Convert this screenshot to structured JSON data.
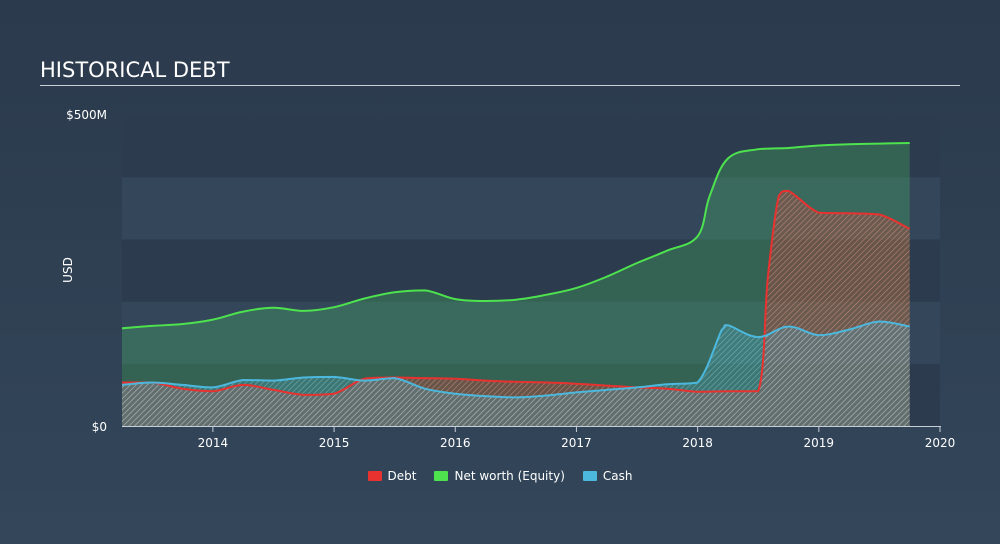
{
  "title": "HISTORICAL DEBT",
  "colors": {
    "debt": "#e8322f",
    "equity": "#4de24e",
    "cash": "#4cb8dd",
    "plot_band_dark": "#2c3b4d",
    "plot_band_light": "#34465a"
  },
  "chart_data": {
    "type": "area",
    "title": "HISTORICAL DEBT",
    "ylabel": "USD",
    "xlabel": "",
    "ylim": [
      0,
      500
    ],
    "xlim": [
      2013.25,
      2020.0
    ],
    "y_ticks": [
      {
        "value": 0,
        "label": "$0"
      },
      {
        "value": 500,
        "label": "$500M"
      }
    ],
    "x_ticks": [
      {
        "value": 2014,
        "label": "2014"
      },
      {
        "value": 2015,
        "label": "2015"
      },
      {
        "value": 2016,
        "label": "2016"
      },
      {
        "value": 2017,
        "label": "2017"
      },
      {
        "value": 2018,
        "label": "2018"
      },
      {
        "value": 2019,
        "label": "2019"
      },
      {
        "value": 2020,
        "label": "2020"
      }
    ],
    "legend_position": "bottom-center",
    "series": [
      {
        "name": "Debt",
        "color": "#e8322f",
        "x": [
          2013.25,
          2013.5,
          2013.75,
          2014.0,
          2014.25,
          2014.5,
          2014.75,
          2015.0,
          2015.25,
          2015.5,
          2015.75,
          2016.0,
          2016.25,
          2016.5,
          2016.75,
          2017.0,
          2017.25,
          2017.5,
          2017.75,
          2018.0,
          2018.25,
          2018.5,
          2018.58,
          2018.67,
          2018.75,
          2019.0,
          2019.25,
          2019.5,
          2019.75
        ],
        "values": [
          70,
          70,
          60,
          56,
          66,
          58,
          50,
          52,
          76,
          78,
          77,
          76,
          73,
          71,
          70,
          68,
          65,
          62,
          60,
          55,
          56,
          56,
          240,
          370,
          378,
          343,
          342,
          340,
          317
        ]
      },
      {
        "name": "Net worth (Equity)",
        "color": "#4de24e",
        "x": [
          2013.25,
          2013.5,
          2013.75,
          2014.0,
          2014.25,
          2014.5,
          2014.75,
          2015.0,
          2015.25,
          2015.5,
          2015.75,
          2016.0,
          2016.25,
          2016.5,
          2016.75,
          2017.0,
          2017.25,
          2017.5,
          2017.75,
          2018.0,
          2018.1,
          2018.25,
          2018.5,
          2018.75,
          2019.0,
          2019.25,
          2019.5,
          2019.75
        ],
        "values": [
          157,
          161,
          164,
          171,
          184,
          190,
          185,
          191,
          205,
          215,
          218,
          204,
          201,
          203,
          211,
          222,
          240,
          262,
          282,
          305,
          370,
          430,
          445,
          447,
          451,
          453,
          454,
          455
        ]
      },
      {
        "name": "Cash",
        "color": "#4cb8dd",
        "x": [
          2013.25,
          2013.5,
          2013.75,
          2014.0,
          2014.25,
          2014.5,
          2014.75,
          2015.0,
          2015.25,
          2015.5,
          2015.75,
          2016.0,
          2016.25,
          2016.5,
          2016.75,
          2017.0,
          2017.25,
          2017.5,
          2017.75,
          2018.0,
          2018.2,
          2018.25,
          2018.5,
          2018.75,
          2019.0,
          2019.25,
          2019.5,
          2019.75
        ],
        "values": [
          66,
          70,
          66,
          62,
          74,
          73,
          78,
          79,
          73,
          77,
          60,
          52,
          48,
          46,
          49,
          54,
          58,
          62,
          67,
          70,
          155,
          162,
          143,
          160,
          146,
          155,
          168,
          160
        ]
      }
    ]
  }
}
